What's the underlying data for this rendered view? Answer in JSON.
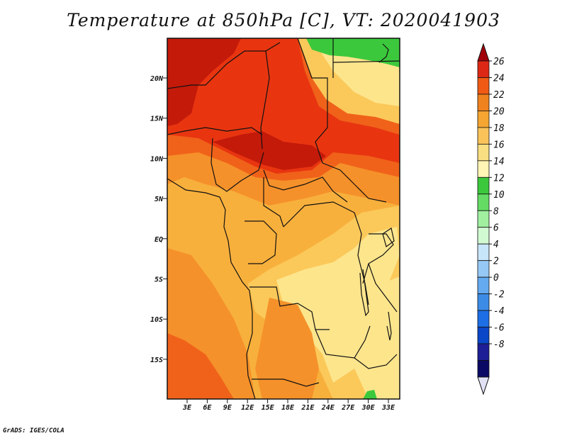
{
  "title": "Temperature at 850hPa [C], VT: 2020041903",
  "credit": "GrADS: IGES/COLA",
  "map": {
    "lat_labels": [
      "20N",
      "15N",
      "10N",
      "5N",
      "EQ",
      "5S",
      "10S",
      "15S"
    ],
    "lon_labels": [
      "3E",
      "6E",
      "9E",
      "12E",
      "15E",
      "18E",
      "21E",
      "24E",
      "27E",
      "30E",
      "33E"
    ]
  },
  "colorbar": {
    "labels": [
      "26",
      "24",
      "22",
      "20",
      "18",
      "16",
      "14",
      "12",
      "10",
      "8",
      "6",
      "4",
      "2",
      "0",
      "-2",
      "-4",
      "-6",
      "-8"
    ],
    "colors": [
      "#a0000a",
      "#dc2814",
      "#f05a14",
      "#f0821e",
      "#f5a532",
      "#fac35a",
      "#fade82",
      "#fff5b4",
      "#3cc83c",
      "#64dc64",
      "#a0f0a0",
      "#d2fad2",
      "#c8e6fa",
      "#96c8f5",
      "#64aaf0",
      "#3c8ce6",
      "#1e6ee6",
      "#0a46c8",
      "#1e1e96",
      "#0a0a64",
      "#e1e1f5"
    ]
  },
  "palette": {
    "dark_red": "#c41a0a",
    "red": "#e83510",
    "orange_red": "#f0621a",
    "orange": "#f5912a",
    "light_orange": "#f8b03c",
    "yellow_orange": "#fbc95a",
    "pale_yellow": "#fde58c",
    "cream": "#fff2b0",
    "green": "#3cc83c"
  }
}
